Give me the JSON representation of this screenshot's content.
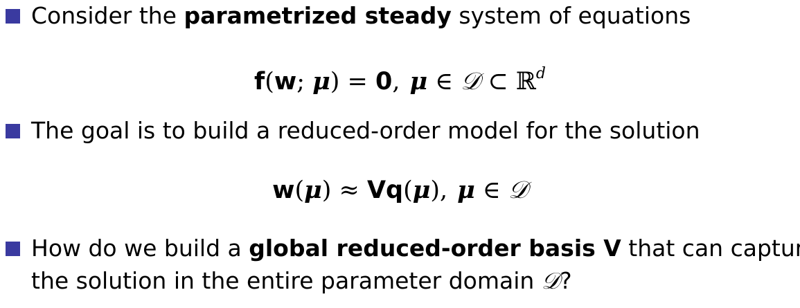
{
  "bullets": [
    {
      "pre": "Consider the ",
      "bold": "parametrized steady",
      "post": " system of equations"
    },
    {
      "text": "The goal is to build a reduced-order model for the solution"
    },
    {
      "line1_pre": "How do we build a ",
      "line1_bold": "global reduced-order basis V",
      "line1_post": " that can capture",
      "line2_pre": "the solution in the entire parameter domain ",
      "line2_symbol": "𝒟",
      "line2_post": "?"
    }
  ],
  "equations": {
    "eq1": {
      "f": "f",
      "open": "(",
      "w": "w",
      "semi": "; ",
      "mu": "μ",
      "close": ")",
      "eq": " = ",
      "zero": "0",
      "comma": ",",
      "mu2": "μ",
      "in": " ∈ ",
      "D": "𝒟",
      "subset": " ⊂ ",
      "R": "ℝ",
      "d": "d"
    },
    "eq2": {
      "w": "w",
      "open": "(",
      "mu": "μ",
      "close": ")",
      "approx": " ≈ ",
      "V": "V",
      "q": "q",
      "open2": "(",
      "mu2": "μ",
      "close2": "),",
      "mu3": "μ",
      "in": " ∈ ",
      "D": "𝒟"
    }
  },
  "colors": {
    "bullet": "#3a3aa0",
    "text": "#000000",
    "background": "#ffffff"
  }
}
